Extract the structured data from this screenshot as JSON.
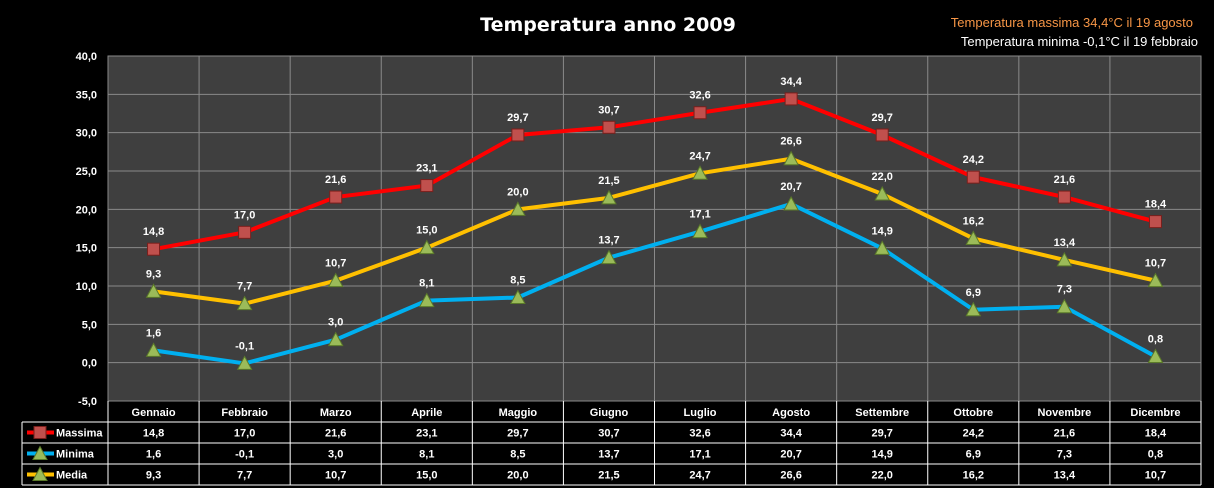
{
  "chart_data": {
    "type": "line",
    "title": "Temperatura anno 2009",
    "annotations": [
      "Temperatura massima  34,4°C il 19  agosto",
      "Temperatura minima  -0,1°C il 19 febbraio"
    ],
    "categories": [
      "Gennaio",
      "Febbraio",
      "Marzo",
      "Aprile",
      "Maggio",
      "Giugno",
      "Luglio",
      "Agosto",
      "Settembre",
      "Ottobre",
      "Novembre",
      "Dicembre"
    ],
    "y_ticks": [
      "40,0",
      "35,0",
      "30,0",
      "25,0",
      "20,0",
      "15,0",
      "10,0",
      "5,0",
      "0,0",
      "-5,0"
    ],
    "ylim": [
      -5,
      40
    ],
    "grid": true,
    "legend": "data-table-left",
    "series": [
      {
        "name": "Massima",
        "color": "#ff0000",
        "marker": "square",
        "values": [
          14.8,
          17.0,
          21.6,
          23.1,
          29.7,
          30.7,
          32.6,
          34.4,
          29.7,
          24.2,
          21.6,
          18.4
        ],
        "labels": [
          "14,8",
          "17,0",
          "21,6",
          "23,1",
          "29,7",
          "30,7",
          "32,6",
          "34,4",
          "29,7",
          "24,2",
          "21,6",
          "18,4"
        ]
      },
      {
        "name": "Minima",
        "color": "#00b0f0",
        "marker": "triangle",
        "values": [
          1.6,
          -0.1,
          3.0,
          8.1,
          8.5,
          13.7,
          17.1,
          20.7,
          14.9,
          6.9,
          7.3,
          0.8
        ],
        "labels": [
          "1,6",
          "-0,1",
          "3,0",
          "8,1",
          "8,5",
          "13,7",
          "17,1",
          "20,7",
          "14,9",
          "6,9",
          "7,3",
          "0,8"
        ]
      },
      {
        "name": "Media",
        "color": "#ffc000",
        "marker": "triangle",
        "values": [
          9.3,
          7.7,
          10.7,
          15.0,
          20.0,
          21.5,
          24.7,
          26.6,
          22.0,
          16.2,
          13.4,
          10.7
        ],
        "labels": [
          "9,3",
          "7,7",
          "10,7",
          "15,0",
          "20,0",
          "21,5",
          "24,7",
          "26,6",
          "22,0",
          "16,2",
          "13,4",
          "10,7"
        ]
      }
    ]
  }
}
